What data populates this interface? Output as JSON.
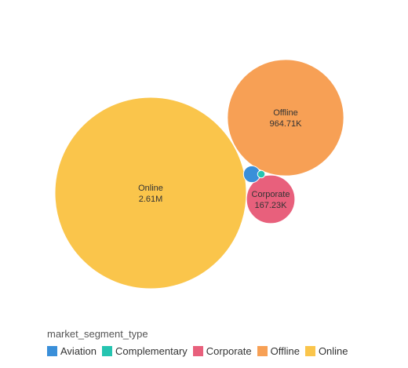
{
  "chart_data": {
    "type": "bubble",
    "legend_title": "market_segment_type",
    "legend_position": "bottom-left",
    "series": [
      {
        "name": "Aviation",
        "value": 20000,
        "color": "#3a8fd9",
        "label": "",
        "value_label": ""
      },
      {
        "name": "Complementary",
        "value": 4000,
        "color": "#25c4b0",
        "label": "",
        "value_label": ""
      },
      {
        "name": "Corporate",
        "value": 167230,
        "color": "#e8607c",
        "label": "Corporate",
        "value_label": "167.23K"
      },
      {
        "name": "Offline",
        "value": 964710,
        "color": "#f7a055",
        "label": "Offline",
        "value_label": "964.71K"
      },
      {
        "name": "Online",
        "value": 2610000,
        "color": "#fac54b",
        "label": "Online",
        "value_label": "2.61M"
      }
    ]
  }
}
